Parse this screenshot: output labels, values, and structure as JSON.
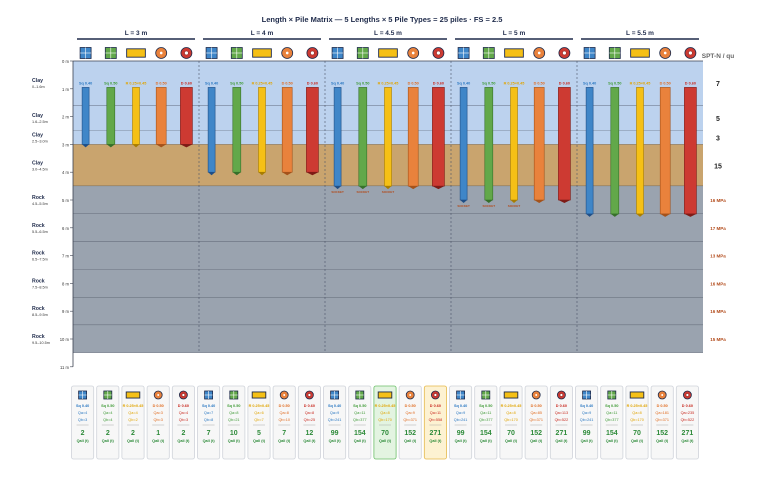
{
  "title": "Length × Pile Matrix — 5 Lengths × 5 Pile Types = 25 piles · FS = 2.5",
  "spt_header": "SPT-N / qu",
  "groups": [
    {
      "label": "L = 3 m",
      "length_m": 3
    },
    {
      "label": "L = 4 m",
      "length_m": 4
    },
    {
      "label": "L = 4.5 m",
      "length_m": 4.5
    },
    {
      "label": "L = 5 m",
      "length_m": 5
    },
    {
      "label": "L = 5.5 m",
      "length_m": 5.5
    }
  ],
  "pile_types": [
    {
      "key": "sq",
      "icon": "square-pile-icon",
      "label": "Sq 0.40",
      "color": "#3f86c8",
      "color_dark": "#1f4e86",
      "text_color": "#2a78c2"
    },
    {
      "key": "sqm",
      "icon": "square-mesh-pile-icon",
      "label": "Sq 0.50",
      "color": "#62a84a",
      "color_dark": "#36702a",
      "text_color": "#3e9a35"
    },
    {
      "key": "rect",
      "icon": "rect-pile-icon",
      "label": "R 0.25×0.45",
      "color": "#f5c016",
      "color_dark": "#a87d00",
      "text_color": "#e0a400"
    },
    {
      "key": "circ",
      "icon": "circle-pile-icon",
      "label": "D 0.50",
      "color": "#e9823c",
      "color_dark": "#a4521a",
      "text_color": "#e06b1f"
    },
    {
      "key": "circ2",
      "icon": "circle-dot-pile-icon",
      "label": "D 0.60",
      "color": "#cd3a32",
      "color_dark": "#7e1b16",
      "text_color": "#c8281e"
    }
  ],
  "layers": [
    {
      "name": "Clay",
      "range": "0–1.6m",
      "from": 0,
      "to": 1.6,
      "color": "#bcd2ee",
      "value": "7",
      "value_color": "#222222"
    },
    {
      "name": "Clay",
      "range": "1.6–2.5m",
      "from": 1.6,
      "to": 2.5,
      "color": "#bcd2ee",
      "value": "5",
      "value_color": "#222222"
    },
    {
      "name": "Clay",
      "range": "2.5–3.0m",
      "from": 2.5,
      "to": 3.0,
      "color": "#bcd2ee",
      "value": "3",
      "value_color": "#222222"
    },
    {
      "name": "Clay",
      "range": "3.0–4.5m",
      "from": 3.0,
      "to": 4.5,
      "color": "#c9a46e",
      "value": "15",
      "value_color": "#222222"
    },
    {
      "name": "Rock",
      "range": "4.5–5.5m",
      "from": 4.5,
      "to": 5.5,
      "color": "#9aa3af",
      "value": "16 MPa",
      "value_color": "#b24a1a"
    },
    {
      "name": "Rock",
      "range": "5.5–6.5m",
      "from": 5.5,
      "to": 6.5,
      "color": "#9aa3af",
      "value": "17 MPa",
      "value_color": "#b24a1a"
    },
    {
      "name": "Rock",
      "range": "6.5–7.5m",
      "from": 6.5,
      "to": 7.5,
      "color": "#9aa3af",
      "value": "13 MPa",
      "value_color": "#b24a1a"
    },
    {
      "name": "Rock",
      "range": "7.5–8.5m",
      "from": 7.5,
      "to": 8.5,
      "color": "#9aa3af",
      "value": "16 MPa",
      "value_color": "#b24a1a"
    },
    {
      "name": "Rock",
      "range": "8.5–9.5m",
      "from": 8.5,
      "to": 9.5,
      "color": "#9aa3af",
      "value": "16 MPa",
      "value_color": "#b24a1a"
    },
    {
      "name": "Rock",
      "range": "9.5–10.5m",
      "from": 9.5,
      "to": 10.5,
      "color": "#9aa3af",
      "value": "15 MPa",
      "value_color": "#b24a1a"
    }
  ],
  "depth_ticks": [
    "0 m",
    "1 m",
    "2 m",
    "3 m",
    "4 m",
    "5 m",
    "6 m",
    "7 m",
    "8 m",
    "9 m",
    "10 m",
    "11 m"
  ],
  "rock_socket_label": "SOCKET",
  "cards": [
    {
      "qa": "Qa=4",
      "qb": "Qb=3",
      "val": "2",
      "unit": "Qall (t)",
      "highlight": "none"
    },
    {
      "qa": "Qa=4",
      "qb": "Qb=4",
      "val": "2",
      "unit": "Qall (t)",
      "highlight": "none"
    },
    {
      "qa": "Qa=4",
      "qb": "Qb=2",
      "val": "2",
      "unit": "Qall (t)",
      "highlight": "none"
    },
    {
      "qa": "Qa=3",
      "qb": "Qb=3",
      "val": "1",
      "unit": "Qall (t)",
      "highlight": "none"
    },
    {
      "qa": "Qa=4",
      "qb": "Qb=3",
      "val": "2",
      "unit": "Qall (t)",
      "highlight": "none"
    },
    {
      "qa": "Qa=7",
      "qb": "Qb=8",
      "val": "7",
      "unit": "Qall (t)",
      "highlight": "none"
    },
    {
      "qa": "Qa=8",
      "qb": "Qb=21",
      "val": "10",
      "unit": "Qall (t)",
      "highlight": "none"
    },
    {
      "qa": "Qa=6",
      "qb": "Qb=7",
      "val": "5",
      "unit": "Qall (t)",
      "highlight": "none"
    },
    {
      "qa": "Qa=8",
      "qb": "Qb=10",
      "val": "7",
      "unit": "Qall (t)",
      "highlight": "none"
    },
    {
      "qa": "Qa=8",
      "qb": "Qb=25",
      "val": "12",
      "unit": "Qall (t)",
      "highlight": "none"
    },
    {
      "qa": "Qa=9",
      "qb": "Qb=241",
      "val": "99",
      "unit": "Qall (t)",
      "highlight": "none"
    },
    {
      "qa": "Qa=11",
      "qb": "Qb=377",
      "val": "154",
      "unit": "Qall (t)",
      "highlight": "none"
    },
    {
      "qa": "Qa=8",
      "qb": "Qb=170",
      "val": "70",
      "unit": "Qall (t)",
      "highlight": "green"
    },
    {
      "qa": "Qa=9",
      "qb": "Qb=371",
      "val": "152",
      "unit": "Qall (t)",
      "highlight": "none"
    },
    {
      "qa": "Qa=11",
      "qb": "Qb=558",
      "val": "271",
      "unit": "Qall (t)",
      "highlight": "yellow"
    },
    {
      "qa": "Qa=9",
      "qb": "Qb=241",
      "val": "99",
      "unit": "Qall (t)",
      "highlight": "none"
    },
    {
      "qa": "Qa=11",
      "qb": "Qb=377",
      "val": "154",
      "unit": "Qall (t)",
      "highlight": "none"
    },
    {
      "qa": "Qa=8",
      "qb": "Qb=170",
      "val": "70",
      "unit": "Qall (t)",
      "highlight": "none"
    },
    {
      "qa": "Qa=85",
      "qb": "Qb=371",
      "val": "152",
      "unit": "Qall (t)",
      "highlight": "none"
    },
    {
      "qa": "Qa=113",
      "qb": "Qb=522",
      "val": "271",
      "unit": "Qall (t)",
      "highlight": "none"
    },
    {
      "qa": "Qa=9",
      "qb": "Qb=241",
      "val": "99",
      "unit": "Qall (t)",
      "highlight": "none"
    },
    {
      "qa": "Qa=11",
      "qb": "Qb=377",
      "val": "154",
      "unit": "Qall (t)",
      "highlight": "none"
    },
    {
      "qa": "Qa=8",
      "qb": "Qb=170",
      "val": "70",
      "unit": "Qall (t)",
      "highlight": "none"
    },
    {
      "qa": "Qa=181",
      "qb": "Qb=371",
      "val": "152",
      "unit": "Qall (t)",
      "highlight": "none"
    },
    {
      "qa": "Qa=235",
      "qb": "Qb=522",
      "val": "271",
      "unit": "Qall (t)",
      "highlight": "none"
    }
  ],
  "colors": {
    "ink": "#1e2a4a",
    "grid": "#5a6274",
    "val_green": "#2e8b3a"
  }
}
